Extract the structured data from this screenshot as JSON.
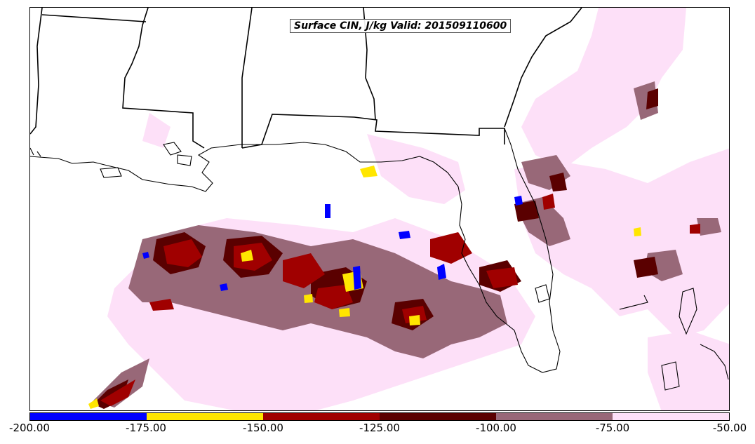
{
  "title": "Surface CIN, J/kg Valid: 201509110600",
  "colorbar": {
    "colors": [
      "#0000ff",
      "#ffe600",
      "#a00000",
      "#5a0000",
      "#986878",
      "#fde0f8"
    ],
    "ticks": [
      "-200.00",
      "-175.00",
      "-150.00",
      "-125.00",
      "-100.00",
      "-75.00",
      "-50.00"
    ]
  },
  "map": {
    "features": [
      "state-borders",
      "coastline",
      "cin-shading"
    ],
    "cin_colors": {
      "blue": "#0000ff",
      "yellow": "#ffe600",
      "red": "#a00000",
      "dark_red": "#5a0000",
      "mauve": "#986878",
      "pink": "#fde0f8"
    }
  }
}
